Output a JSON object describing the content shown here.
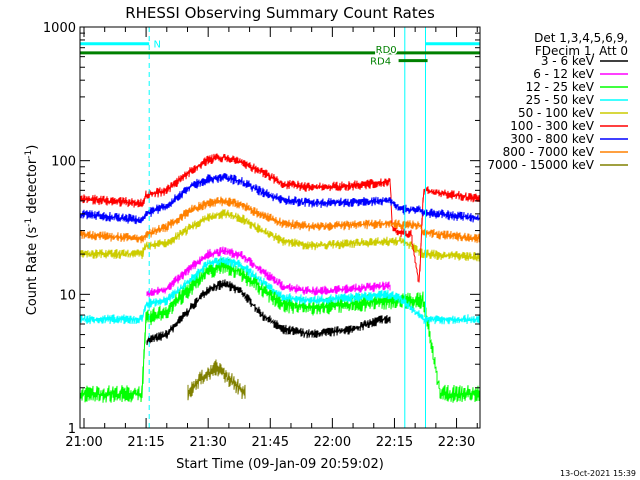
{
  "chart_data": {
    "type": "line",
    "title": "RHESSI Observing Summary Count Rates",
    "xlabel": "Start Time (09-Jan-09 20:59:02)",
    "ylabel_parts": [
      "Count Rate (s",
      "-1",
      " detector",
      "-1",
      ")"
    ],
    "yscale": "log",
    "xlim": [
      "20:59:02",
      "22:35:40"
    ],
    "ylim": [
      1,
      1000
    ],
    "x_ticks": [
      "21:00",
      "21:15",
      "21:30",
      "21:45",
      "22:00",
      "22:15",
      "22:30"
    ],
    "y_ticks": [
      "1",
      "10",
      "100",
      "1000"
    ],
    "legend_header": [
      "Det 1,3,4,5,6,9,",
      "FDecim 1, Att 0"
    ],
    "legend_position": "top-right outside",
    "series": [
      {
        "name": "3 - 6 keV",
        "color": "#000000",
        "points": [
          [
            "21:15:00",
            4.5
          ],
          [
            "21:20:00",
            5.0
          ],
          [
            "21:26:00",
            8.0
          ],
          [
            "21:30:00",
            11.0
          ],
          [
            "21:34:00",
            12.0
          ],
          [
            "21:38:00",
            10.5
          ],
          [
            "21:43:00",
            7.0
          ],
          [
            "21:48:00",
            5.5
          ],
          [
            "21:55:00",
            5.0
          ],
          [
            "22:05:00",
            5.5
          ],
          [
            "22:12:00",
            6.5
          ],
          [
            "22:14:00",
            6.5
          ]
        ]
      },
      {
        "name": "6 - 12 keV",
        "color": "#ff00ff",
        "points": [
          [
            "21:15:00",
            10.0
          ],
          [
            "21:20:00",
            11.0
          ],
          [
            "21:26:00",
            16.0
          ],
          [
            "21:30:00",
            20.0
          ],
          [
            "21:34:00",
            21.0
          ],
          [
            "21:38:00",
            19.5
          ],
          [
            "21:43:00",
            15.0
          ],
          [
            "21:48:00",
            11.5
          ],
          [
            "21:55:00",
            10.5
          ],
          [
            "22:05:00",
            11.0
          ],
          [
            "22:12:00",
            11.5
          ],
          [
            "22:14:00",
            11.5
          ]
        ]
      },
      {
        "name": "12 - 25 keV",
        "color": "#00ff00",
        "points": [
          [
            "20:59:02",
            1.8
          ],
          [
            "21:14:00",
            1.8
          ],
          [
            "21:15:00",
            6.5
          ],
          [
            "21:20:00",
            7.5
          ],
          [
            "21:26:00",
            11.5
          ],
          [
            "21:30:00",
            15.0
          ],
          [
            "21:34:00",
            16.5
          ],
          [
            "21:38:00",
            14.5
          ],
          [
            "21:43:00",
            11.0
          ],
          [
            "21:48:00",
            8.5
          ],
          [
            "21:55:00",
            8.0
          ],
          [
            "22:05:00",
            8.5
          ],
          [
            "22:14:00",
            9.0
          ],
          [
            "22:17:00",
            9.0
          ],
          [
            "22:22:00",
            9.0
          ],
          [
            "22:26:00",
            1.8
          ],
          [
            "22:35:40",
            1.8
          ]
        ]
      },
      {
        "name": "25 - 50 keV",
        "color": "#00ffff",
        "points": [
          [
            "20:59:02",
            6.5
          ],
          [
            "21:14:00",
            6.5
          ],
          [
            "21:15:00",
            8.5
          ],
          [
            "21:20:00",
            9.0
          ],
          [
            "21:26:00",
            13.0
          ],
          [
            "21:30:00",
            17.0
          ],
          [
            "21:34:00",
            18.0
          ],
          [
            "21:38:00",
            16.5
          ],
          [
            "21:43:00",
            12.5
          ],
          [
            "21:48:00",
            9.5
          ],
          [
            "21:55:00",
            9.0
          ],
          [
            "22:05:00",
            9.5
          ],
          [
            "22:14:00",
            10.0
          ],
          [
            "22:17:00",
            9.0
          ],
          [
            "22:22:00",
            6.5
          ],
          [
            "22:35:40",
            6.5
          ]
        ]
      },
      {
        "name": "50 - 100 keV",
        "color": "#cccc00",
        "points": [
          [
            "20:59:02",
            20.0
          ],
          [
            "21:14:00",
            20.0
          ],
          [
            "21:15:00",
            23.0
          ],
          [
            "21:20:00",
            24.0
          ],
          [
            "21:26:00",
            32.0
          ],
          [
            "21:30:00",
            38.0
          ],
          [
            "21:34:00",
            40.0
          ],
          [
            "21:38:00",
            37.0
          ],
          [
            "21:43:00",
            30.0
          ],
          [
            "21:48:00",
            25.0
          ],
          [
            "21:55:00",
            23.0
          ],
          [
            "22:05:00",
            24.0
          ],
          [
            "22:14:00",
            25.0
          ],
          [
            "22:17:00",
            25.0
          ],
          [
            "22:22:00",
            20.0
          ],
          [
            "22:35:40",
            19.0
          ]
        ]
      },
      {
        "name": "100 - 300 keV",
        "color": "#ff0000",
        "points": [
          [
            "20:59:02",
            52.0
          ],
          [
            "21:14:00",
            48.0
          ],
          [
            "21:15:00",
            55.0
          ],
          [
            "21:20:00",
            60.0
          ],
          [
            "21:26:00",
            85.0
          ],
          [
            "21:30:00",
            102.0
          ],
          [
            "21:34:00",
            106.0
          ],
          [
            "21:38:00",
            98.0
          ],
          [
            "21:43:00",
            82.0
          ],
          [
            "21:48:00",
            67.0
          ],
          [
            "21:55:00",
            63.0
          ],
          [
            "22:05:00",
            65.0
          ],
          [
            "22:14:00",
            70.0
          ],
          [
            "22:14:30",
            30.0
          ],
          [
            "22:19:00",
            28.0
          ],
          [
            "22:21:00",
            12.0
          ],
          [
            "22:22:00",
            60.0
          ],
          [
            "22:35:40",
            52.0
          ]
        ]
      },
      {
        "name": "300 - 800 keV",
        "color": "#0000ff",
        "points": [
          [
            "20:59:02",
            40.0
          ],
          [
            "21:14:00",
            36.0
          ],
          [
            "21:15:00",
            40.0
          ],
          [
            "21:20:00",
            46.0
          ],
          [
            "21:26:00",
            65.0
          ],
          [
            "21:30:00",
            73.0
          ],
          [
            "21:34:00",
            75.0
          ],
          [
            "21:38:00",
            70.0
          ],
          [
            "21:43:00",
            58.0
          ],
          [
            "21:48:00",
            51.0
          ],
          [
            "21:55:00",
            48.0
          ],
          [
            "22:05:00",
            49.0
          ],
          [
            "22:14:00",
            50.0
          ],
          [
            "22:17:00",
            43.0
          ],
          [
            "22:21:00",
            43.0
          ],
          [
            "22:22:00",
            41.0
          ],
          [
            "22:35:40",
            37.0
          ]
        ]
      },
      {
        "name": "800 - 7000 keV",
        "color": "#ff8000",
        "points": [
          [
            "20:59:02",
            28.0
          ],
          [
            "21:14:00",
            26.0
          ],
          [
            "21:15:00",
            28.0
          ],
          [
            "21:20:00",
            32.0
          ],
          [
            "21:26:00",
            43.0
          ],
          [
            "21:30:00",
            48.0
          ],
          [
            "21:34:00",
            50.0
          ],
          [
            "21:38:00",
            47.0
          ],
          [
            "21:43:00",
            39.0
          ],
          [
            "21:48:00",
            34.0
          ],
          [
            "21:55:00",
            32.0
          ],
          [
            "22:05:00",
            33.0
          ],
          [
            "22:14:00",
            34.0
          ],
          [
            "22:17:00",
            33.0
          ],
          [
            "22:21:00",
            33.0
          ],
          [
            "22:22:00",
            29.0
          ],
          [
            "22:35:40",
            26.0
          ]
        ]
      },
      {
        "name": "7000 - 15000 keV",
        "color": "#808000",
        "points": [
          [
            "21:25:00",
            1.8
          ],
          [
            "21:28:00",
            2.3
          ],
          [
            "21:32:00",
            2.8
          ],
          [
            "21:36:00",
            2.2
          ],
          [
            "21:39:00",
            1.8
          ]
        ]
      }
    ],
    "annotations": [
      {
        "label": "N",
        "color": "#00ffff",
        "kind": "bar",
        "y": 750,
        "intervals": [
          [
            "20:59:02",
            "21:15:45"
          ],
          [
            "22:22:30",
            "22:35:40"
          ]
        ]
      },
      {
        "label": "RD0",
        "color": "#008000",
        "kind": "bar",
        "y": 640,
        "intervals": [
          [
            "20:59:02",
            "22:35:40"
          ]
        ]
      },
      {
        "label": "RD4",
        "color": "#008000",
        "kind": "bar",
        "y": 560,
        "intervals": [
          [
            "22:16:00",
            "22:23:00"
          ]
        ]
      }
    ],
    "vertical_lines": [
      {
        "time": "21:15:45",
        "color": "#00ffff",
        "style": "dashed"
      },
      {
        "time": "22:17:30",
        "color": "#00ffff",
        "style": "solid"
      },
      {
        "time": "22:22:30",
        "color": "#00ffff",
        "style": "solid"
      },
      {
        "time": "22:35:40",
        "color": "#00ffff",
        "style": "dashed"
      }
    ]
  },
  "footer": {
    "timestamp": "13-Oct-2021 15:39"
  }
}
